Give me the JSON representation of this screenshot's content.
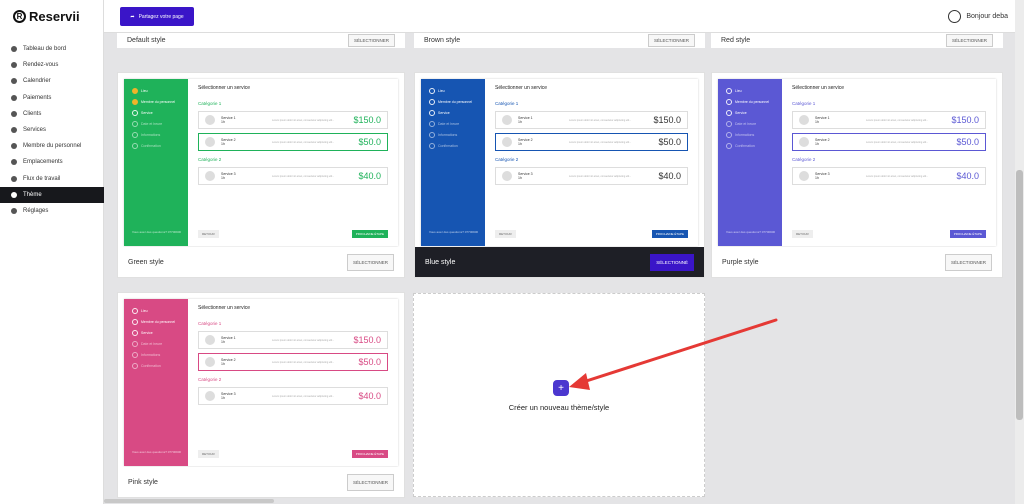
{
  "app": {
    "name": "Reservii",
    "logo_letter": "R"
  },
  "topbar": {
    "share_label": "Partagez votre page",
    "user_greeting": "Bonjour deba"
  },
  "nav": [
    {
      "label": "Tableau de bord",
      "icon": "dashboard-icon"
    },
    {
      "label": "Rendez-vous",
      "icon": "clock-icon"
    },
    {
      "label": "Calendrier",
      "icon": "calendar-icon"
    },
    {
      "label": "Paiements",
      "icon": "payment-icon"
    },
    {
      "label": "Clients",
      "icon": "users-icon"
    },
    {
      "label": "Services",
      "icon": "list-icon"
    },
    {
      "label": "Membre du personnel",
      "icon": "user-icon"
    },
    {
      "label": "Emplacements",
      "icon": "location-icon"
    },
    {
      "label": "Flux de travail",
      "icon": "workflow-icon"
    },
    {
      "label": "Thème",
      "icon": "brush-icon",
      "active": true
    },
    {
      "label": "Réglages",
      "icon": "gear-icon"
    }
  ],
  "top_row": [
    {
      "name": "Default style",
      "button": "SÉLECTIONNER"
    },
    {
      "name": "Brown style",
      "button": "SÉLECTIONNER"
    },
    {
      "name": "Red style",
      "button": "SÉLECTIONNER"
    }
  ],
  "preview": {
    "title": "Sélectionner un service",
    "category1": "Catégorie 1",
    "category2": "Catégorie 2",
    "service1": "Service 1",
    "service2": "Service 2",
    "service3": "Service 3",
    "duration": "1h",
    "desc": "Lorem ipsum dolor sit amet, consectetur adipiscing elit...",
    "price1": "$150.0",
    "price2": "$50.0",
    "price3": "$40.0",
    "back": "RETOUR",
    "next": "PROCHAINE ÉTAPE",
    "steps": [
      "Lieu",
      "Membre du personnel",
      "Service",
      "Date et heure",
      "Informations",
      "Confirmation"
    ],
    "footer": "Vous avez des questions? 07700900"
  },
  "themes": [
    {
      "name": "Green style",
      "button": "SÉLECTIONNER",
      "color": "#1fb25a",
      "dark": false
    },
    {
      "name": "Blue style",
      "button": "SÉLECTIONNÉ",
      "color": "#1655b2",
      "dark": true
    },
    {
      "name": "Purple style",
      "button": "SÉLECTIONNER",
      "color": "#5b58d4",
      "dark": false
    },
    {
      "name": "Pink style",
      "button": "SÉLECTIONNER",
      "color": "#d84a84",
      "dark": false
    }
  ],
  "create": {
    "label": "Créer un nouveau thème/style",
    "plus": "+"
  },
  "colors": {
    "accent": "#3a15c8",
    "arrow": "#e53935",
    "sidebar_active": "#17181c"
  }
}
